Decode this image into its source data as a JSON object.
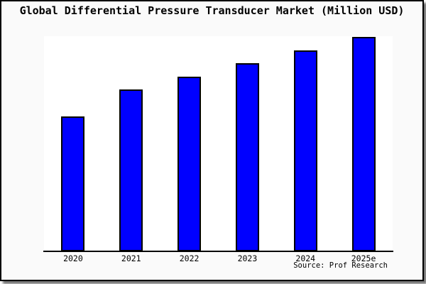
{
  "title": "Global Differential Pressure Transducer Market (Million USD)",
  "source_label": "Source: Prof Research",
  "colors": {
    "bar_fill": "#0000ff",
    "bar_border": "#000000",
    "plot_background": "#ffffff",
    "card_background": "#fafafa",
    "frame_border": "#000000",
    "shadow": "#999999",
    "text": "#000000"
  },
  "chart_data": {
    "type": "bar",
    "title": "Global Differential Pressure Transducer Market (Million USD)",
    "categories": [
      "2020",
      "2021",
      "2022",
      "2023",
      "2024",
      "2025e"
    ],
    "values": [
      190,
      228,
      246,
      265,
      283,
      302
    ],
    "value_axis_labeled": false,
    "value_note": "No numeric value axis shown in chart; values are relative bar heights (px) read from the plot, baseline = 0",
    "xlabel": "",
    "ylabel": "",
    "ylim": [
      0,
      303
    ],
    "grid": false,
    "legend": false
  }
}
